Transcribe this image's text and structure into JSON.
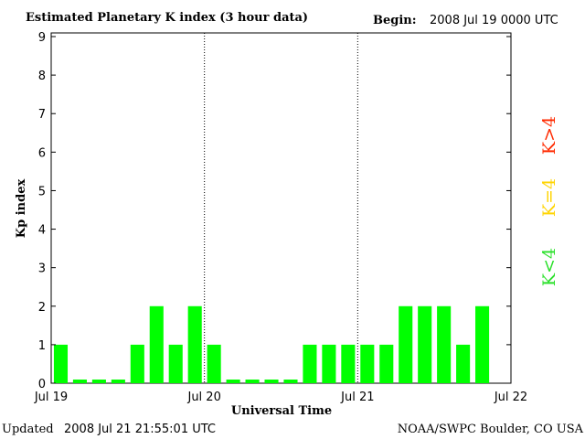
{
  "header": {
    "title": "Estimated Planetary K index (3 hour data)",
    "begin_label": "Begin:",
    "begin_value": "2008 Jul 19 0000 UTC"
  },
  "footer": {
    "updated_label": "Updated",
    "updated_value": "2008 Jul 21 21:55:01 UTC",
    "source": "NOAA/SWPC Boulder, CO USA"
  },
  "legend": {
    "items": [
      {
        "label": "K>4",
        "color": "#ff2a00"
      },
      {
        "label": "K=4",
        "color": "#ffd400"
      },
      {
        "label": "K<4",
        "color": "#2ae02a"
      }
    ]
  },
  "chart_data": {
    "type": "bar",
    "ylabel": "Kp index",
    "xlabel": "Universal Time",
    "ylim": [
      0,
      9
    ],
    "yticks": [
      "0",
      "1",
      "2",
      "3",
      "4",
      "5",
      "6",
      "7",
      "8",
      "9"
    ],
    "xticks": [
      "Jul 19",
      "Jul 20",
      "Jul 21",
      "Jul 22"
    ],
    "slots_per_day": 8,
    "day_divider_style": "dotted",
    "bar_color": "#00ff00",
    "values": [
      1,
      0,
      0,
      0,
      1,
      2,
      1,
      2,
      1,
      0,
      0,
      0,
      0,
      1,
      1,
      1,
      1,
      1,
      2,
      2,
      2,
      1,
      2
    ]
  }
}
